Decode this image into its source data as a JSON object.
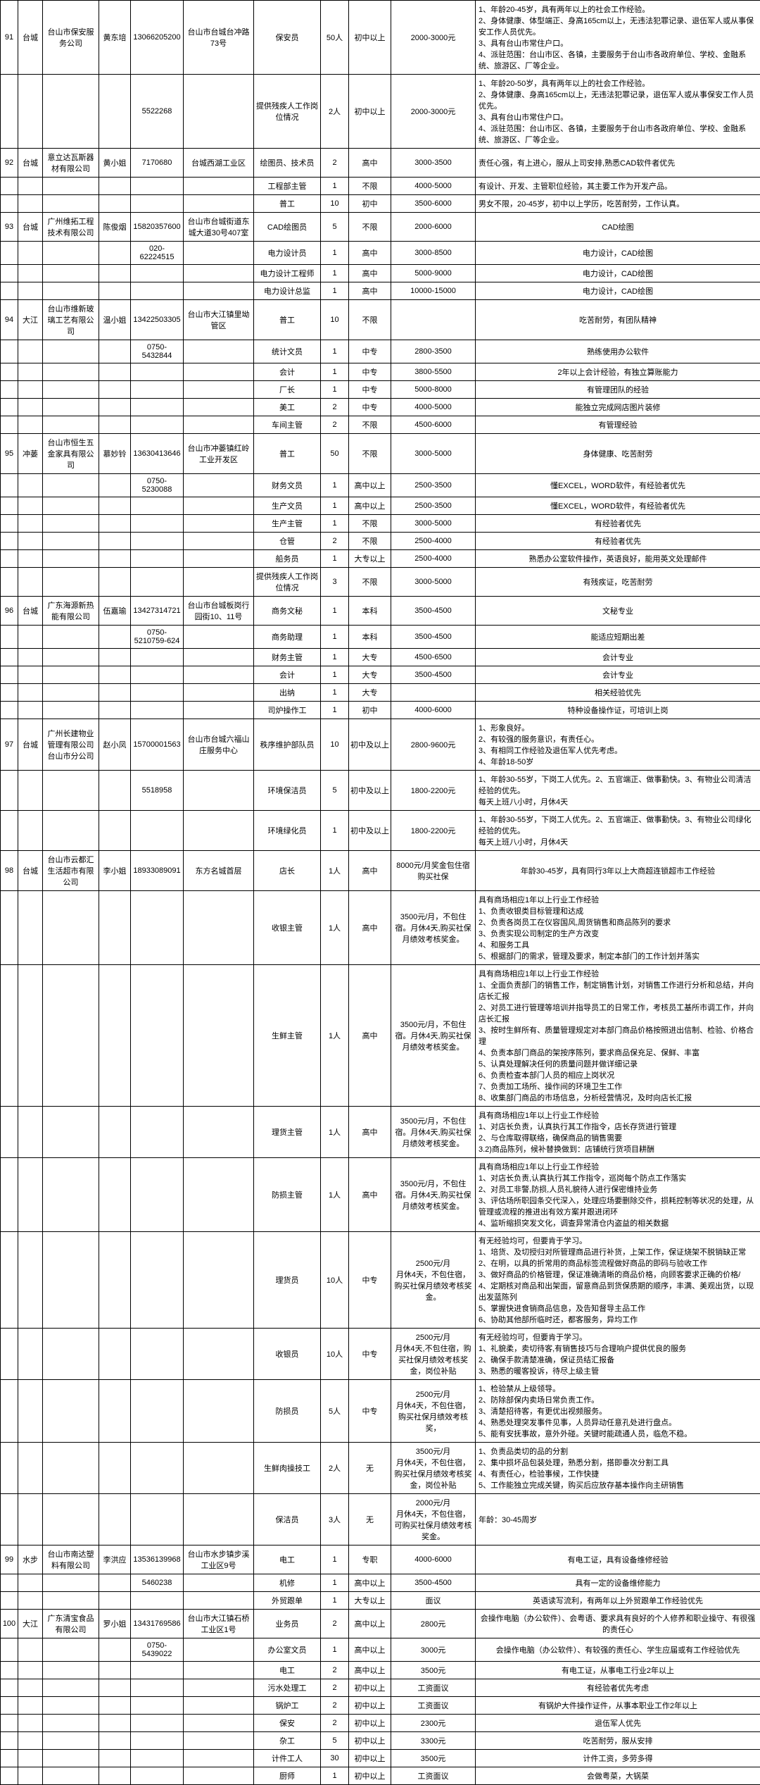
{
  "rows": [
    {
      "c0": "91",
      "c1": "台城",
      "c2": "台山市保安服务公司",
      "c3": "黄东培",
      "c4": "13066205200",
      "c5": "台山市台城台冲路73号",
      "c6": "保安员",
      "c7": "50人",
      "c8": "初中以上",
      "c9": "2000-3000元",
      "c10": "1、年龄20-45岁，具有两年以上的社会工作经验。\n2、身体健康、体型端正、身高165cm以上，无违法犯罪记录、退伍军人或从事保安工作人员优先。\n3、具有台山市常住户口。\n4、派驻范围：台山市区、各镇，主要服务于台山市各政府单位、学校、金融系统、旅游区、厂等企业。",
      "left": true
    },
    {
      "c0": "",
      "c1": "",
      "c2": "",
      "c3": "",
      "c4": "5522268",
      "c5": "",
      "c6": "提供残疾人工作岗位情况",
      "c7": "2人",
      "c8": "初中以上",
      "c9": "2000-3000元",
      "c10": "1、年龄20-50岁，具有两年以上的社会工作经验。\n2、身体健康、身高165cm以上，无违法犯罪记录，退伍军人或从事保安工作人员优先。\n3、具有台山市常住户口。\n4、派驻范围：台山市区、各镇，主要服务于台山市各政府单位、学校、金融系统、旅游区、厂等企业。",
      "left": true
    },
    {
      "c0": "92",
      "c1": "台城",
      "c2": "意立达瓦斯器材有限公司",
      "c3": "黄小姐",
      "c4": "7170680",
      "c5": "台城西湖工业区",
      "c6": "绘图员、技术员",
      "c7": "2",
      "c8": "高中",
      "c9": "3000-3500",
      "c10": "责任心强，有上进心，服从上司安排,熟悉CAD软件者优先",
      "left": true
    },
    {
      "c0": "",
      "c1": "",
      "c2": "",
      "c3": "",
      "c4": "",
      "c5": "",
      "c6": "工程部主管",
      "c7": "1",
      "c8": "不限",
      "c9": "4000-5000",
      "c10": "有设计、开发、主管职位经验，其主要工作为开发产品。",
      "left": true
    },
    {
      "c0": "",
      "c1": "",
      "c2": "",
      "c3": "",
      "c4": "",
      "c5": "",
      "c6": "普工",
      "c7": "10",
      "c8": "初中",
      "c9": "3500-6000",
      "c10": "男女不限，20-45岁，初中以上学历，吃苦耐劳，工作认真。",
      "left": true
    },
    {
      "c0": "93",
      "c1": "台城",
      "c2": "广州维拓工程技术有限公司",
      "c3": "陈俊烟",
      "c4": "15820357600",
      "c5": "台山市台城街道东城大道30号407室",
      "c6": "CAD绘图员",
      "c7": "5",
      "c8": "不限",
      "c9": "2000-6000",
      "c10": "CAD绘图"
    },
    {
      "c0": "",
      "c1": "",
      "c2": "",
      "c3": "",
      "c4": "020-62224515",
      "c5": "",
      "c6": "电力设计员",
      "c7": "1",
      "c8": "高中",
      "c9": "3000-8500",
      "c10": "电力设计，CAD绘图"
    },
    {
      "c0": "",
      "c1": "",
      "c2": "",
      "c3": "",
      "c4": "",
      "c5": "",
      "c6": "电力设计工程师",
      "c7": "1",
      "c8": "高中",
      "c9": "5000-9000",
      "c10": "电力设计，CAD绘图"
    },
    {
      "c0": "",
      "c1": "",
      "c2": "",
      "c3": "",
      "c4": "",
      "c5": "",
      "c6": "电力设计总监",
      "c7": "1",
      "c8": "高中",
      "c9": "10000-15000",
      "c10": "电力设计，CAD绘图"
    },
    {
      "c0": "94",
      "c1": "大江",
      "c2": "台山市维新玻璃工艺有限公司",
      "c3": "温小姐",
      "c4": "13422503305",
      "c5": "台山市大江镇里坳管区",
      "c6": "普工",
      "c7": "10",
      "c8": "不限",
      "c9": "",
      "c10": "吃苦耐劳，有团队精神"
    },
    {
      "c0": "",
      "c1": "",
      "c2": "",
      "c3": "",
      "c4": "0750-5432844",
      "c5": "",
      "c6": "统计文员",
      "c7": "1",
      "c8": "中专",
      "c9": "2800-3500",
      "c10": "熟练使用办公软件"
    },
    {
      "c0": "",
      "c1": "",
      "c2": "",
      "c3": "",
      "c4": "",
      "c5": "",
      "c6": "会计",
      "c7": "1",
      "c8": "中专",
      "c9": "3800-5500",
      "c10": "2年以上会计经验，有独立算账能力"
    },
    {
      "c0": "",
      "c1": "",
      "c2": "",
      "c3": "",
      "c4": "",
      "c5": "",
      "c6": "厂长",
      "c7": "1",
      "c8": "中专",
      "c9": "5000-8000",
      "c10": "有管理团队的经验"
    },
    {
      "c0": "",
      "c1": "",
      "c2": "",
      "c3": "",
      "c4": "",
      "c5": "",
      "c6": "美工",
      "c7": "2",
      "c8": "中专",
      "c9": "4000-5000",
      "c10": "能独立完成网店图片装修"
    },
    {
      "c0": "",
      "c1": "",
      "c2": "",
      "c3": "",
      "c4": "",
      "c5": "",
      "c6": "车间主管",
      "c7": "2",
      "c8": "不限",
      "c9": "4500-6000",
      "c10": "有管理经验"
    },
    {
      "c0": "95",
      "c1": "冲蒌",
      "c2": "台山市恒生五金家具有限公司",
      "c3": "慕妙铃",
      "c4": "13630413646",
      "c5": "台山市冲蒌镇红岭工业开发区",
      "c6": "普工",
      "c7": "50",
      "c8": "不限",
      "c9": "3000-5000",
      "c10": "身体健康、吃苦耐劳"
    },
    {
      "c0": "",
      "c1": "",
      "c2": "",
      "c3": "",
      "c4": "0750-5230088",
      "c5": "",
      "c6": "财务文员",
      "c7": "1",
      "c8": "高中以上",
      "c9": "2500-3500",
      "c10": "懂EXCEL，WORD软件，有经验者优先"
    },
    {
      "c0": "",
      "c1": "",
      "c2": "",
      "c3": "",
      "c4": "",
      "c5": "",
      "c6": "生产文员",
      "c7": "1",
      "c8": "高中以上",
      "c9": "2500-3500",
      "c10": "懂EXCEL，WORD软件，有经验者优先"
    },
    {
      "c0": "",
      "c1": "",
      "c2": "",
      "c3": "",
      "c4": "",
      "c5": "",
      "c6": "生产主管",
      "c7": "1",
      "c8": "不限",
      "c9": "3000-5000",
      "c10": "有经验者优先"
    },
    {
      "c0": "",
      "c1": "",
      "c2": "",
      "c3": "",
      "c4": "",
      "c5": "",
      "c6": "仓管",
      "c7": "2",
      "c8": "不限",
      "c9": "2500-4000",
      "c10": "有经验者优先"
    },
    {
      "c0": "",
      "c1": "",
      "c2": "",
      "c3": "",
      "c4": "",
      "c5": "",
      "c6": "船务员",
      "c7": "1",
      "c8": "大专以上",
      "c9": "2500-4000",
      "c10": "熟悉办公室软件操作，英语良好，能用英文处理邮件"
    },
    {
      "c0": "",
      "c1": "",
      "c2": "",
      "c3": "",
      "c4": "",
      "c5": "",
      "c6": "提供残疾人工作岗位情况",
      "c7": "3",
      "c8": "不限",
      "c9": "3000-5000",
      "c10": "有残疾证，吃苦耐劳"
    },
    {
      "c0": "96",
      "c1": "台城",
      "c2": "广东海源新热能有限公司",
      "c3": "伍嘉瑜",
      "c4": "13427314721",
      "c5": "台山市台城板岗行园街10、11号",
      "c6": "商务文秘",
      "c7": "1",
      "c8": "本科",
      "c9": "3500-4500",
      "c10": "文秘专业"
    },
    {
      "c0": "",
      "c1": "",
      "c2": "",
      "c3": "",
      "c4": "0750-5210759-624",
      "c5": "",
      "c6": "商务助理",
      "c7": "1",
      "c8": "本科",
      "c9": "3500-4500",
      "c10": "能适应短期出差"
    },
    {
      "c0": "",
      "c1": "",
      "c2": "",
      "c3": "",
      "c4": "",
      "c5": "",
      "c6": "财务主管",
      "c7": "1",
      "c8": "大专",
      "c9": "4500-6500",
      "c10": "会计专业"
    },
    {
      "c0": "",
      "c1": "",
      "c2": "",
      "c3": "",
      "c4": "",
      "c5": "",
      "c6": "会计",
      "c7": "1",
      "c8": "大专",
      "c9": "3500-4500",
      "c10": "会计专业"
    },
    {
      "c0": "",
      "c1": "",
      "c2": "",
      "c3": "",
      "c4": "",
      "c5": "",
      "c6": "出纳",
      "c7": "1",
      "c8": "大专",
      "c9": "",
      "c10": "相关经验优先"
    },
    {
      "c0": "",
      "c1": "",
      "c2": "",
      "c3": "",
      "c4": "",
      "c5": "",
      "c6": "司炉操作工",
      "c7": "1",
      "c8": "初中",
      "c9": "4000-6000",
      "c10": "特种设备操作证，可培训上岗"
    },
    {
      "c0": "97",
      "c1": "台城",
      "c2": "广州长建物业管理有限公司台山市分公司",
      "c3": "赵小凤",
      "c4": "15700001563",
      "c5": "台山市台城六福山庄服务中心",
      "c6": "秩序维护部队员",
      "c7": "10",
      "c8": "初中及以上",
      "c9": "2800-9600元",
      "c10": "1、形象良好。\n2、有较强的服务意识，有责任心。\n3、有相同工作经验及退伍军人优先考虑。\n4、年龄18-50岁",
      "left": true
    },
    {
      "c0": "",
      "c1": "",
      "c2": "",
      "c3": "",
      "c4": "5518958",
      "c5": "",
      "c6": "环境保洁员",
      "c7": "5",
      "c8": "初中及以上",
      "c9": "1800-2200元",
      "c10": "1、年龄30-55岁，下岗工人优先。2、五官端正、做事勤快。3、有物业公司清洁经验的优先。\n每天上班八小时，月休4天",
      "left": true
    },
    {
      "c0": "",
      "c1": "",
      "c2": "",
      "c3": "",
      "c4": "",
      "c5": "",
      "c6": "环境绿化员",
      "c7": "1",
      "c8": "初中及以上",
      "c9": "1800-2200元",
      "c10": "1、年龄30-55岁，下岗工人优先。2、五官端正、做事勤快。3、有物业公司绿化经验的优先。\n每天上班八小时，月休4天",
      "left": true
    },
    {
      "c0": "98",
      "c1": "台城",
      "c2": "台山市云都汇生活超市有限公司",
      "c3": "李小姐",
      "c4": "18933089091",
      "c5": "东方名城首层",
      "c6": "店长",
      "c7": "1人",
      "c8": "高中",
      "c9": "8000元/月奖金包住宿购买社保",
      "c10": "年龄30-45岁，具有同行3年以上大商超连锁超市工作经验"
    },
    {
      "c0": "",
      "c1": "",
      "c2": "",
      "c3": "",
      "c4": "",
      "c5": "",
      "c6": "收银主管",
      "c7": "1人",
      "c8": "高中",
      "c9": "3500元/月，不包住宿。月休4天,购买社保月绩效考核奖金。",
      "c10": "具有商场相应1年以上行业工作经验\n1、负责收银类目标管理和达成\n2、负责各岗员工在仪容国风,周货销售和商品陈列的要求\n3、负责实现公司制定的生产方改变\n4、和服务工具\n5、根据部门的需求，管理及要求，制定本部门的工作计划并落实",
      "left": true
    },
    {
      "c0": "",
      "c1": "",
      "c2": "",
      "c3": "",
      "c4": "",
      "c5": "",
      "c6": "生鲜主管",
      "c7": "1人",
      "c8": "高中",
      "c9": "3500元/月，不包住宿。月休4天,购买社保月绩效考核奖金。",
      "c10": "具有商场相应1年以上行业工作经验\n1、全面负责部门的销售工作，制定销售计划，对销售工作进行分析和总结，并向店长汇报\n2、对员工进行管理等培训并指导员工的日常工作，考核员工基所市调工作，并向店长汇报\n3、按时生鲜所有、质量管理规定对本部门商品价格按照进出信制、检验、价格合理\n4、负责本部门商品的架按序陈列，要求商品保充足、保鲜、丰富\n5、认真处理解决任何的质量问题并做详细记录\n6、负责检查本部门人员的相应上岗状况\n7、负责加工场所、操作间的环境卫生工作\n8、收集部门商品的市场信息，分析经营情况，及时向店长汇报",
      "left": true
    },
    {
      "c0": "",
      "c1": "",
      "c2": "",
      "c3": "",
      "c4": "",
      "c5": "",
      "c6": "理货主管",
      "c7": "1人",
      "c8": "高中",
      "c9": "3500元/月，不包住宿。月休4天,购买社保月绩效考核奖金。",
      "c10": "具有商场相应1年以上行业工作经验\n1、对店长负责，认真执行其工作指令，店长存货进行管理\n2、与仓库取得联络，确保商品的销售需要\n3.2)商品陈列，候补替换做到：店铺统行货项目耕酬",
      "left": true
    },
    {
      "c0": "",
      "c1": "",
      "c2": "",
      "c3": "",
      "c4": "",
      "c5": "",
      "c6": "防损主管",
      "c7": "1人",
      "c8": "高中",
      "c9": "3500元/月，不包住宿。月休4天,购买社保月绩效考核奖金。",
      "c10": "具有商场相应1年以上行业工作经验\n1、对店长负责,认真执行其工作指令，巡岗每个防点工作落实\n2、对员工非警,防损,人员礼貌待人进行保密维持业务\n3、评估场所职园条交代深入，处理应场要删除交件，损耗控制等状况的处理，从管理或流程的推进出有效方案并跟进闭环\n4、监听缩损突发文化，调查异常清仓内盗益的相关数据",
      "left": true
    },
    {
      "c0": "",
      "c1": "",
      "c2": "",
      "c3": "",
      "c6": "理货员",
      "c7": "10人",
      "c8": "中专",
      "c9": "2500元/月\n月休4天，不包住宿，购买社保月绩效考核奖金。",
      "c10": "有无经验均可，但要肯于学习。\n1、培货、及切授归对所管理商品进行补货，上架工作，保证烧架不脱销缺正常\n2、在明，以具的折常用的商品标签流程做好商品的即码与验收工作\n3、做好商品的价格管理，保证准确清晰的商品价格，向顾客要求正确的价格/\n4、定期核对商品和出架面，留意商品到货保质期的顺序，丰满、美观出货，以现出发蓝陈列\n5、掌握快进食销商品信息，及告知督导主品工作\n6、协助其他部所临时还，都客服务，异均工作",
      "left": true,
      "c5": ""
    },
    {
      "c0": "",
      "c1": "",
      "c2": "",
      "c3": "",
      "c4": "",
      "c5": "",
      "c6": "收银员",
      "c7": "10人",
      "c8": "中专",
      "c9": "2500元/月\n月休4天,不包住宿，购买社保月绩效考核奖金，岗位补贴",
      "c10": "有无经验均可，但要肯于学习。\n1、礼貌柔，卖切待客,有销售技巧与合理响户提供优良的服务\n2、确保手款清楚准确，保证员结汇报备\n3、熟悉的暖客投诉，待尽上级主管",
      "left": true
    },
    {
      "c0": "",
      "c1": "",
      "c2": "",
      "c3": "",
      "c4": "",
      "c5": "",
      "c6": "防损员",
      "c7": "5人",
      "c8": "中专",
      "c9": "2500元/月\n月休4天，不包住宿，购买社保月绩效考核奖，",
      "c10": "1、检验禁从上级领导。\n2、防除部保内卖场日常负责工作。\n3、清楚招待客，有更优出视频服务。\n4、熟悉处理突发事件见事，人员异动任意孔处进行盘点。\n5、能有安抚事故，意外外碰。关键时能疏通人员，临危不稳。",
      "left": true
    },
    {
      "c0": "",
      "c1": "",
      "c2": "",
      "c3": "",
      "c4": "",
      "c5": "",
      "c6": "生鲜肉操技工",
      "c7": "2人",
      "c8": "无",
      "c9": "3500元/月\n月休4天，不包住宿，购买社保月绩效考核奖金，岗位补贴",
      "c10": "1、负责品类切的品的分割\n2、集中损坏品包装处理，熟悉分割，搭即垂次分割工具\n4、有责任心，检验事候，工作快捷\n5、工作能独立完成关键，购买后应放存基本操作向主研销售",
      "left": true
    },
    {
      "c0": "",
      "c1": "",
      "c2": "",
      "c3": "",
      "c4": "",
      "c5": "",
      "c6": "保洁员",
      "c7": "3人",
      "c8": "无",
      "c9": "2000元/月\n月休4天，不包住宿，可购买社保月绩效考核奖金。",
      "c10": "年龄：30-45周岁",
      "left": true
    },
    {
      "c0": "99",
      "c1": "水步",
      "c2": "台山市南达塑料有限公司",
      "c3": "李洪应",
      "c4": "13536139968",
      "c5": "台山市水步镇步溪工业区9号",
      "c6": "电工",
      "c7": "1",
      "c8": "专职",
      "c9": "4000-6000",
      "c10": "有电工证，具有设备维修经验"
    },
    {
      "c0": "",
      "c1": "",
      "c2": "",
      "c3": "",
      "c4": "5460238",
      "c5": "",
      "c6": "机修",
      "c7": "1",
      "c8": "高中以上",
      "c9": "3500-4500",
      "c10": "具有一定的设备维修能力"
    },
    {
      "c0": "",
      "c1": "",
      "c2": "",
      "c3": "",
      "c4": "",
      "c5": "",
      "c6": "外贸跟单",
      "c7": "1",
      "c8": "大专以上",
      "c9": "面议",
      "c10": "英语读写流利，有两年以上外贸跟单工作经验优先"
    },
    {
      "c0": "100",
      "c1": "大江",
      "c2": "广东清宝食品有限公司",
      "c3": "罗小姐",
      "c4": "13431769586",
      "c5": "台山市大江镇石桥工业区1号",
      "c6": "业务员",
      "c7": "2",
      "c8": "高中以上",
      "c9": "2800元",
      "c10": "会操作电脑（办公软件）、会粤语、要求具有良好的个人修养和职业操守、有很强的责任心"
    },
    {
      "c0": "",
      "c1": "",
      "c2": "",
      "c3": "",
      "c4": "0750-5439022",
      "c5": "",
      "c6": "办公室文员",
      "c7": "1",
      "c8": "高中以上",
      "c9": "3000元",
      "c10": "会操作电脑（办公软件）、有较强的责任心、学生应届或有工作经验优先"
    },
    {
      "c0": "",
      "c1": "",
      "c2": "",
      "c3": "",
      "c4": "",
      "c5": "",
      "c6": "电工",
      "c7": "2",
      "c8": "高中以上",
      "c9": "3500元",
      "c10": "有电工证，从事电工行业2年以上"
    },
    {
      "c0": "",
      "c1": "",
      "c2": "",
      "c3": "",
      "c4": "",
      "c5": "",
      "c6": "污水处理工",
      "c7": "2",
      "c8": "初中以上",
      "c9": "工资面议",
      "c10": "有经验者优先考虑"
    },
    {
      "c0": "",
      "c1": "",
      "c2": "",
      "c3": "",
      "c4": "",
      "c5": "",
      "c6": "锅炉工",
      "c7": "2",
      "c8": "初中以上",
      "c9": "工资面议",
      "c10": "有锅炉大件操作证件，从事本职业工作2年以上"
    },
    {
      "c0": "",
      "c1": "",
      "c2": "",
      "c3": "",
      "c4": "",
      "c5": "",
      "c6": "保安",
      "c7": "2",
      "c8": "初中以上",
      "c9": "2300元",
      "c10": "退伍军人优先"
    },
    {
      "c0": "",
      "c1": "",
      "c2": "",
      "c3": "",
      "c4": "",
      "c5": "",
      "c6": "杂工",
      "c7": "5",
      "c8": "初中以上",
      "c9": "3300元",
      "c10": "吃苦耐劳，服从安排"
    },
    {
      "c0": "",
      "c1": "",
      "c2": "",
      "c3": "",
      "c4": "",
      "c5": "",
      "c6": "计件工人",
      "c7": "30",
      "c8": "初中以上",
      "c9": "3500元",
      "c10": "计件工资，多劳多得"
    },
    {
      "c0": "",
      "c1": "",
      "c2": "",
      "c3": "",
      "c4": "",
      "c5": "",
      "c6": "厨师",
      "c7": "1",
      "c8": "初中以上",
      "c9": "工资面议",
      "c10": "会做粤菜，大锅菜"
    }
  ]
}
